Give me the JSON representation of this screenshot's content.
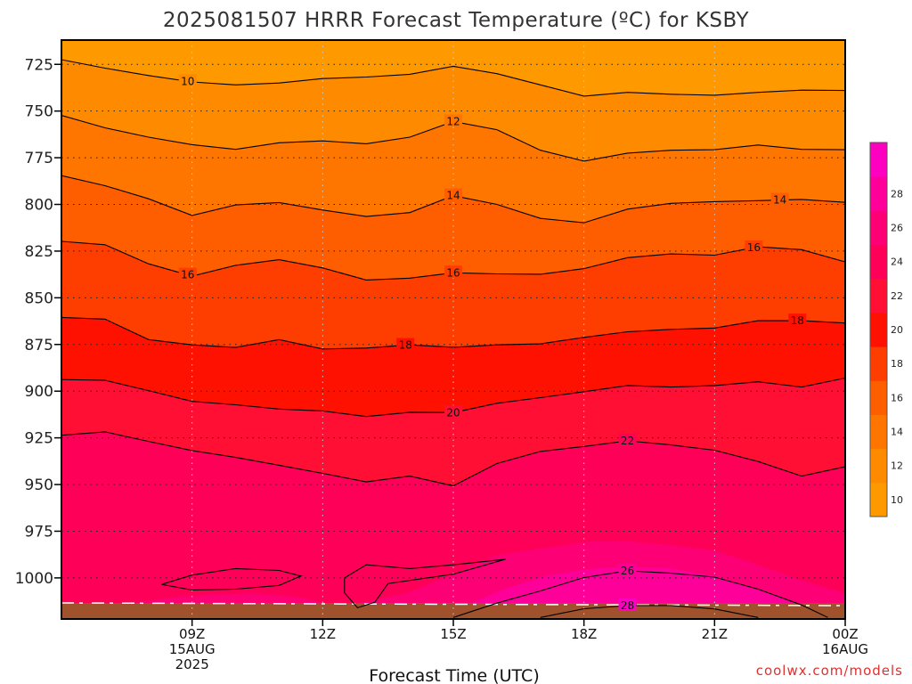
{
  "chart_data": {
    "type": "contour",
    "title": "2025081507 HRRR Forecast Temperature (ºC) for KSBY",
    "xlabel": "Forecast Time (UTC)",
    "ylabel": "",
    "credit": "coolwx.com/models",
    "y_axis": {
      "ticks": [
        725,
        750,
        775,
        800,
        825,
        850,
        875,
        900,
        925,
        950,
        975,
        1000
      ],
      "labels": [
        "725",
        "750",
        "775",
        "800",
        "825",
        "850",
        "875",
        "900",
        "925",
        "950",
        "975",
        "1000"
      ],
      "range_hPa": [
        712,
        1022
      ],
      "inverted": true
    },
    "x_axis": {
      "range_hours": [
        6,
        24
      ],
      "ticks": [
        {
          "hour": 9,
          "lines": [
            "09Z",
            "15AUG",
            "2025"
          ]
        },
        {
          "hour": 12,
          "lines": [
            "12Z"
          ]
        },
        {
          "hour": 15,
          "lines": [
            "15Z"
          ]
        },
        {
          "hour": 18,
          "lines": [
            "18Z"
          ]
        },
        {
          "hour": 21,
          "lines": [
            "21Z"
          ]
        },
        {
          "hour": 24,
          "lines": [
            "00Z",
            "16AUG"
          ]
        }
      ]
    },
    "grid": true,
    "colorbar": {
      "ticks": [
        10,
        12,
        14,
        16,
        18,
        20,
        22,
        24,
        26,
        28
      ],
      "labels": [
        "10",
        "12",
        "14",
        "16",
        "18",
        "20",
        "22",
        "24",
        "26",
        "28"
      ],
      "levels": [
        {
          "temp": 9,
          "color": "#fe9900"
        },
        {
          "temp": 11,
          "color": "#fe8a00"
        },
        {
          "temp": 13,
          "color": "#fe7500"
        },
        {
          "temp": 15,
          "color": "#fe5d00"
        },
        {
          "temp": 17,
          "color": "#fe3d00"
        },
        {
          "temp": 19,
          "color": "#fe1100"
        },
        {
          "temp": 21,
          "color": "#fe0f33"
        },
        {
          "temp": 23,
          "color": "#fe0058"
        },
        {
          "temp": 25,
          "color": "#fe0075"
        },
        {
          "temp": 27,
          "color": "#fe0099"
        },
        {
          "temp": 29,
          "color": "#fe00c0"
        }
      ]
    },
    "ground_color": "#a0522d",
    "contours": [
      {
        "level": 10,
        "label": "10",
        "label_x": 8.9,
        "points": [
          [
            6,
            722.5
          ],
          [
            7,
            727
          ],
          [
            8,
            731
          ],
          [
            9,
            734.4
          ],
          [
            10,
            736
          ],
          [
            11,
            735
          ],
          [
            12,
            732.6
          ],
          [
            13,
            731.8
          ],
          [
            14,
            730.3
          ],
          [
            15,
            726
          ],
          [
            16,
            730
          ],
          [
            17,
            736
          ],
          [
            18,
            742
          ],
          [
            19,
            740
          ],
          [
            20,
            741
          ],
          [
            21,
            741.5
          ],
          [
            22,
            740
          ],
          [
            23,
            738.8
          ],
          [
            24,
            739
          ],
          [
            25,
            737.8
          ]
        ]
      },
      {
        "level": 12,
        "label": "12",
        "label_x": 15,
        "points": [
          [
            6,
            752.3
          ],
          [
            7,
            759
          ],
          [
            8,
            764
          ],
          [
            9,
            768
          ],
          [
            10,
            770.5
          ],
          [
            11,
            767
          ],
          [
            12,
            766
          ],
          [
            13,
            767.5
          ],
          [
            14,
            764
          ],
          [
            15,
            755.6
          ],
          [
            16,
            760
          ],
          [
            17,
            771
          ],
          [
            18,
            776.8
          ],
          [
            19,
            772.5
          ],
          [
            20,
            771
          ],
          [
            21,
            770.7
          ],
          [
            22,
            768.2
          ],
          [
            23,
            770.5
          ],
          [
            24,
            770.7
          ],
          [
            25,
            770
          ]
        ]
      },
      {
        "level": 14,
        "label": "14",
        "label_x": 15,
        "label_x2": 22.5,
        "points": [
          [
            6,
            784.6
          ],
          [
            7,
            790
          ],
          [
            8,
            797
          ],
          [
            9,
            805.9
          ],
          [
            10,
            800.3
          ],
          [
            11,
            799
          ],
          [
            12,
            803
          ],
          [
            13,
            806.5
          ],
          [
            14,
            804.4
          ],
          [
            15,
            795.3
          ],
          [
            16,
            800
          ],
          [
            17,
            807.5
          ],
          [
            18,
            809.8
          ],
          [
            19,
            802.5
          ],
          [
            20,
            799.4
          ],
          [
            21,
            798.5
          ],
          [
            22,
            798
          ],
          [
            23,
            797.3
          ],
          [
            24,
            798.9
          ],
          [
            25,
            800.5
          ]
        ]
      },
      {
        "level": 16,
        "label": "16",
        "label_x": 8.9,
        "label_x2": 15,
        "label_x3": 21.9,
        "points": [
          [
            6,
            819.8
          ],
          [
            7,
            821.6
          ],
          [
            8,
            831.8
          ],
          [
            9,
            838.4
          ],
          [
            10,
            832.6
          ],
          [
            11,
            829.6
          ],
          [
            12,
            834
          ],
          [
            13,
            840.5
          ],
          [
            14,
            839.5
          ],
          [
            15,
            836.6
          ],
          [
            16,
            837.2
          ],
          [
            17,
            837.4
          ],
          [
            18,
            834.4
          ],
          [
            19,
            828.5
          ],
          [
            20,
            826.5
          ],
          [
            21,
            827.2
          ],
          [
            22,
            822.7
          ],
          [
            23,
            824.2
          ],
          [
            24,
            830.8
          ],
          [
            25,
            826.8
          ]
        ]
      },
      {
        "level": 18,
        "label": "18",
        "label_x": 13.9,
        "label_x2": 22.9,
        "points": [
          [
            6,
            860.5
          ],
          [
            7,
            861.4
          ],
          [
            8,
            872.4
          ],
          [
            9,
            875.2
          ],
          [
            10,
            876.6
          ],
          [
            11,
            872.4
          ],
          [
            12,
            877.4
          ],
          [
            13,
            876.9
          ],
          [
            14,
            875.2
          ],
          [
            15,
            876.5
          ],
          [
            16,
            875.2
          ],
          [
            17,
            874.7
          ],
          [
            18,
            871.2
          ],
          [
            19,
            868.2
          ],
          [
            20,
            866.9
          ],
          [
            21,
            866.2
          ],
          [
            22,
            862.3
          ],
          [
            23,
            862.3
          ],
          [
            24,
            863.5
          ],
          [
            25,
            859.5
          ]
        ]
      },
      {
        "level": 20,
        "label": "20",
        "label_x": 15,
        "points": [
          [
            6,
            893.8
          ],
          [
            7,
            894.2
          ],
          [
            8,
            899.7
          ],
          [
            9,
            905.5
          ],
          [
            10,
            907.3
          ],
          [
            11,
            909.6
          ],
          [
            12,
            910.6
          ],
          [
            13,
            913.6
          ],
          [
            14,
            911.3
          ],
          [
            15,
            911.5
          ],
          [
            16,
            906.5
          ],
          [
            17,
            903.5
          ],
          [
            18,
            900.3
          ],
          [
            19,
            897
          ],
          [
            20,
            897.8
          ],
          [
            21,
            897
          ],
          [
            22,
            895
          ],
          [
            23,
            897.8
          ],
          [
            24,
            893
          ],
          [
            25,
            887.5
          ]
        ]
      },
      {
        "level": 22,
        "label": "22",
        "label_x": 19,
        "points": [
          [
            6,
            923.6
          ],
          [
            7,
            921.8
          ],
          [
            8,
            926.9
          ],
          [
            9,
            931.8
          ],
          [
            10,
            935.5
          ],
          [
            11,
            939.7
          ],
          [
            12,
            944
          ],
          [
            13,
            948.6
          ],
          [
            14,
            945.5
          ],
          [
            15,
            950.7
          ],
          [
            16,
            938.8
          ],
          [
            17,
            932.3
          ],
          [
            18,
            929.6
          ],
          [
            19,
            926.6
          ],
          [
            20,
            928.8
          ],
          [
            21,
            931.6
          ],
          [
            22,
            937.7
          ],
          [
            23,
            945.5
          ],
          [
            24,
            940.5
          ],
          [
            25,
            925.5
          ]
        ]
      },
      {
        "level": 26,
        "label": "26",
        "label_x": 19,
        "points": [
          [
            15,
            1021.2
          ],
          [
            16,
            1013.5
          ],
          [
            17,
            1007
          ],
          [
            18,
            999.8
          ],
          [
            19,
            996.2
          ],
          [
            20,
            997.5
          ],
          [
            21,
            999.6
          ],
          [
            22,
            1006
          ],
          [
            23,
            1014.5
          ],
          [
            23.6,
            1021.2
          ]
        ]
      },
      {
        "level": 28,
        "label": "28",
        "label_x": 19,
        "points": [
          [
            17,
            1021.2
          ],
          [
            18,
            1016.5
          ],
          [
            19,
            1014.8
          ],
          [
            20,
            1014.8
          ],
          [
            21,
            1016.6
          ],
          [
            22,
            1021.2
          ]
        ]
      }
    ],
    "shaded_regions": [
      {
        "temp": 27,
        "label": "",
        "points": [
          [
            14.6,
            1021.2
          ],
          [
            15.2,
            1015.5
          ],
          [
            16.2,
            1005.8
          ],
          [
            17.2,
            998.5
          ],
          [
            18.1,
            995.3
          ],
          [
            19,
            993.9
          ],
          [
            20,
            995
          ],
          [
            21,
            999
          ],
          [
            22,
            1006.5
          ],
          [
            23,
            1014.8
          ],
          [
            23.4,
            1021.2
          ]
        ]
      },
      {
        "temp": 25,
        "label": "",
        "points": [
          [
            7.5,
            1021.2
          ],
          [
            7.5,
            1013.8
          ],
          [
            8.5,
            1010.5
          ],
          [
            9.5,
            1009
          ],
          [
            10.5,
            1008.3
          ],
          [
            11.5,
            1010.5
          ],
          [
            12.1,
            1013.8
          ],
          [
            12.8,
            1013.8
          ],
          [
            13.9,
            1008.3
          ],
          [
            14.9,
            999
          ],
          [
            16,
            987.8
          ],
          [
            17.1,
            984
          ],
          [
            18.1,
            980.6
          ],
          [
            19,
            980.3
          ],
          [
            20,
            982.5
          ],
          [
            21,
            985.4
          ],
          [
            22,
            992.9
          ],
          [
            23,
            1001.3
          ],
          [
            24,
            1008.3
          ],
          [
            25,
            1013.8
          ],
          [
            25,
            1021.2
          ]
        ]
      },
      {
        "temp": 23,
        "label": "",
        "points": [
          [
            6,
            1021.2
          ],
          [
            6,
            929
          ],
          [
            7,
            928
          ],
          [
            8,
            931
          ],
          [
            9,
            935
          ],
          [
            10,
            938
          ],
          [
            11,
            943
          ],
          [
            12,
            947
          ],
          [
            13,
            951
          ],
          [
            14,
            949
          ],
          [
            15,
            953
          ],
          [
            16,
            947
          ],
          [
            17,
            943
          ],
          [
            18,
            942
          ],
          [
            19,
            941
          ],
          [
            20,
            942
          ],
          [
            21,
            943
          ],
          [
            22,
            948
          ],
          [
            23,
            955
          ],
          [
            24,
            952
          ],
          [
            25,
            938
          ],
          [
            25,
            1021.2
          ]
        ]
      }
    ],
    "closed_contours": [
      {
        "points": [
          [
            8.3,
            1003.5
          ],
          [
            9,
            998.5
          ],
          [
            10,
            995
          ],
          [
            11,
            996
          ],
          [
            11.5,
            999
          ],
          [
            11,
            1004
          ],
          [
            10,
            1006
          ],
          [
            9,
            1006.5
          ],
          [
            8.3,
            1003.5
          ]
        ]
      },
      {
        "points": [
          [
            12.5,
            1000
          ],
          [
            13,
            993
          ],
          [
            14,
            995
          ],
          [
            15,
            993
          ],
          [
            16.2,
            990
          ],
          [
            15,
            998
          ],
          [
            13.5,
            1003
          ],
          [
            13.2,
            1013
          ],
          [
            12.8,
            1016
          ],
          [
            12.5,
            1008
          ],
          [
            12.5,
            1000
          ]
        ]
      },
      {
        "points": [
          [
            24,
            973.5
          ],
          [
            24.3,
            968
          ],
          [
            24.5,
            969
          ],
          [
            24.7,
            973
          ],
          [
            24.4,
            976
          ],
          [
            24,
            973.5
          ]
        ]
      }
    ]
  }
}
